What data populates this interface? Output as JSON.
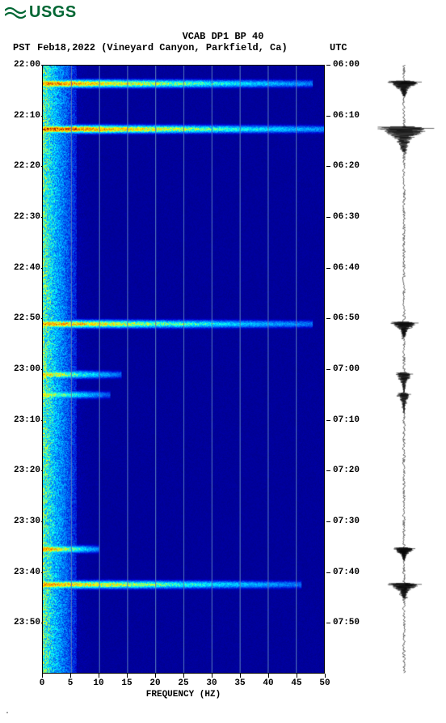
{
  "logo": {
    "text": "USGS",
    "color": "#006633"
  },
  "title": {
    "line1": "VCAB DP1 BP 40",
    "line2": "Feb18,2022 (Vineyard Canyon, Parkfield, Ca)"
  },
  "labels": {
    "pst": "PST",
    "utc": "UTC",
    "xlabel": "FREQUENCY (HZ)"
  },
  "spectrogram": {
    "type": "spectrogram",
    "xlim": [
      0,
      50
    ],
    "xtick_step": 5,
    "xticks": [
      0,
      5,
      10,
      15,
      20,
      25,
      30,
      35,
      40,
      45,
      50
    ],
    "time_start_min": 0,
    "time_end_min": 120,
    "left_ticks": [
      "22:00",
      "22:10",
      "22:20",
      "22:30",
      "22:40",
      "22:50",
      "23:00",
      "23:10",
      "23:20",
      "23:30",
      "23:40",
      "23:50"
    ],
    "right_ticks": [
      "06:00",
      "06:10",
      "06:20",
      "06:30",
      "06:40",
      "06:50",
      "07:00",
      "07:10",
      "07:20",
      "07:30",
      "07:40",
      "07:50"
    ],
    "tick_minutes": [
      0,
      10,
      20,
      30,
      40,
      50,
      60,
      70,
      80,
      90,
      100,
      110
    ],
    "background_color": "#00008b",
    "grid_color": "#5577bb",
    "colormap": [
      {
        "v": 0.0,
        "c": "#00006b"
      },
      {
        "v": 0.2,
        "c": "#0000cd"
      },
      {
        "v": 0.4,
        "c": "#0088ff"
      },
      {
        "v": 0.55,
        "c": "#00ffff"
      },
      {
        "v": 0.7,
        "c": "#ffff00"
      },
      {
        "v": 0.85,
        "c": "#ff8000"
      },
      {
        "v": 1.0,
        "c": "#8b0000"
      }
    ],
    "events": [
      {
        "t": 3.5,
        "freq_extent": 48,
        "intensity": 0.95
      },
      {
        "t": 12.5,
        "freq_extent": 50,
        "intensity": 1.0
      },
      {
        "t": 51.0,
        "freq_extent": 48,
        "intensity": 0.9
      },
      {
        "t": 61.0,
        "freq_extent": 14,
        "intensity": 0.85
      },
      {
        "t": 65.0,
        "freq_extent": 12,
        "intensity": 0.8
      },
      {
        "t": 95.5,
        "freq_extent": 10,
        "intensity": 0.95
      },
      {
        "t": 102.5,
        "freq_extent": 46,
        "intensity": 0.9
      }
    ],
    "low_freq_band": {
      "freq_max": 6,
      "intensity": 0.75
    },
    "noise_floor_intensity": 0.12
  },
  "waveform": {
    "type": "waveform",
    "color": "#000000",
    "baseline_amp": 0.04,
    "events": [
      {
        "t": 3.5,
        "amp": 0.55,
        "dur": 3
      },
      {
        "t": 12.5,
        "amp": 0.95,
        "dur": 5
      },
      {
        "t": 51.0,
        "amp": 0.45,
        "dur": 3
      },
      {
        "t": 61.0,
        "amp": 0.28,
        "dur": 4
      },
      {
        "t": 65.0,
        "amp": 0.22,
        "dur": 4
      },
      {
        "t": 95.5,
        "amp": 0.35,
        "dur": 2.5
      },
      {
        "t": 102.5,
        "amp": 0.55,
        "dur": 3
      }
    ]
  },
  "bottom_marker": "·"
}
